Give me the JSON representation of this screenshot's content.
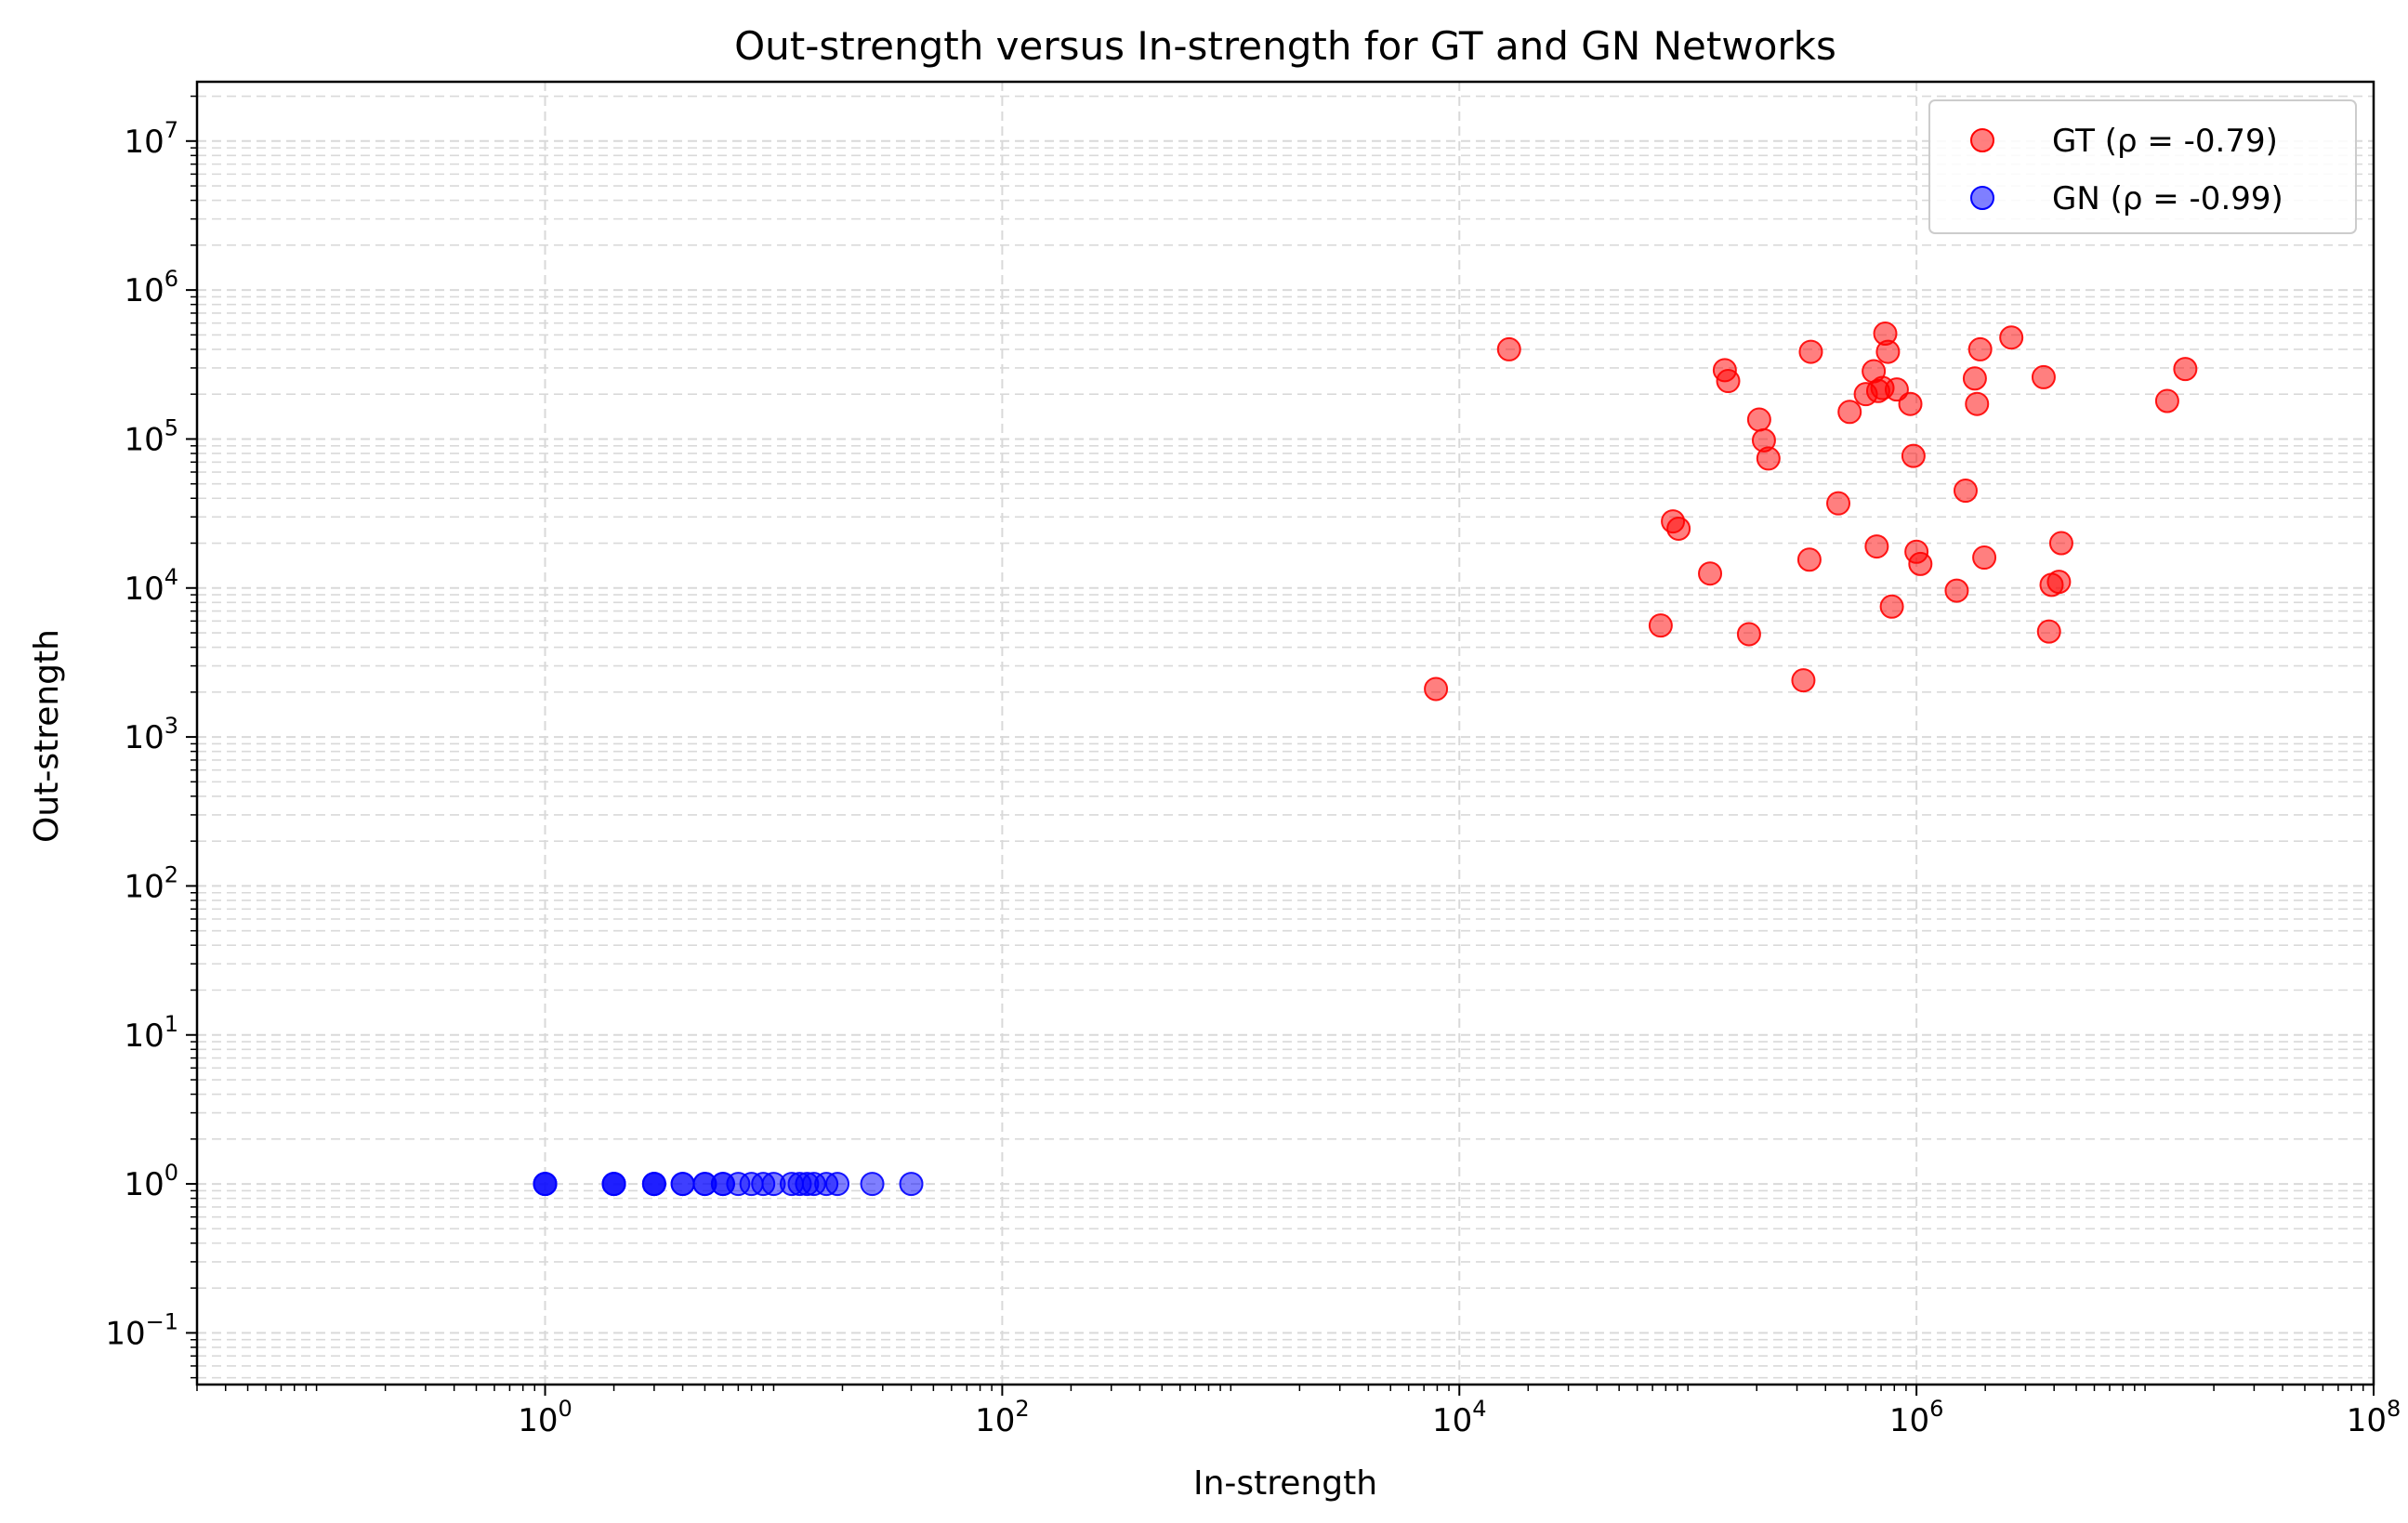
{
  "chart_data": {
    "type": "scatter",
    "title": "Out-strength versus In-strength for GT and GN Networks",
    "xlabel": "In-strength",
    "ylabel": "Out-strength",
    "xscale": "log",
    "yscale": "log",
    "xlim": [
      0.03,
      100000000
    ],
    "ylim": [
      0.045,
      25000000
    ],
    "grid": true,
    "legend_position": "top-right",
    "x_ticks": [
      {
        "base": "10",
        "exp": "0"
      },
      {
        "base": "10",
        "exp": "2"
      },
      {
        "base": "10",
        "exp": "4"
      },
      {
        "base": "10",
        "exp": "6"
      },
      {
        "base": "10",
        "exp": "8"
      }
    ],
    "y_ticks": [
      {
        "base": "10",
        "exp": "−1"
      },
      {
        "base": "10",
        "exp": "0"
      },
      {
        "base": "10",
        "exp": "1"
      },
      {
        "base": "10",
        "exp": "2"
      },
      {
        "base": "10",
        "exp": "3"
      },
      {
        "base": "10",
        "exp": "4"
      },
      {
        "base": "10",
        "exp": "5"
      },
      {
        "base": "10",
        "exp": "6"
      },
      {
        "base": "10",
        "exp": "7"
      }
    ],
    "series": [
      {
        "name": "GT (ρ = -0.79)",
        "color": "#ff0000",
        "points": [
          [
            7900,
            2100
          ],
          [
            16500,
            400000
          ],
          [
            76000,
            5600
          ],
          [
            86000,
            28000
          ],
          [
            91000,
            25000
          ],
          [
            125000,
            12500
          ],
          [
            145000,
            290000
          ],
          [
            150000,
            245000
          ],
          [
            185000,
            4900
          ],
          [
            205000,
            135000
          ],
          [
            215000,
            98000
          ],
          [
            225000,
            74000
          ],
          [
            320000,
            2400
          ],
          [
            340000,
            15500
          ],
          [
            345000,
            385000
          ],
          [
            455000,
            37000
          ],
          [
            510000,
            152000
          ],
          [
            600000,
            200000
          ],
          [
            650000,
            285000
          ],
          [
            670000,
            19000
          ],
          [
            680000,
            210000
          ],
          [
            710000,
            220000
          ],
          [
            730000,
            510000
          ],
          [
            750000,
            385000
          ],
          [
            780000,
            7500
          ],
          [
            820000,
            215000
          ],
          [
            940000,
            172000
          ],
          [
            970000,
            77000
          ],
          [
            1000000,
            17500
          ],
          [
            1040000,
            14500
          ],
          [
            1500000,
            9600
          ],
          [
            1640000,
            45000
          ],
          [
            1800000,
            255000
          ],
          [
            1840000,
            172000
          ],
          [
            1900000,
            400000
          ],
          [
            1980000,
            16000
          ],
          [
            2600000,
            480000
          ],
          [
            3600000,
            260000
          ],
          [
            3800000,
            5100
          ],
          [
            3900000,
            10500
          ],
          [
            4200000,
            11000
          ],
          [
            4300000,
            20000
          ],
          [
            12500000,
            180000
          ],
          [
            15000000,
            295000
          ]
        ]
      },
      {
        "name": "GN (ρ = -0.99)",
        "color": "#0000ff",
        "points": [
          [
            1,
            1
          ],
          [
            1,
            1
          ],
          [
            1,
            1
          ],
          [
            2,
            1
          ],
          [
            2,
            1
          ],
          [
            2,
            1
          ],
          [
            3,
            1
          ],
          [
            3,
            1
          ],
          [
            3,
            1
          ],
          [
            4,
            1
          ],
          [
            4,
            1
          ],
          [
            5,
            1
          ],
          [
            5,
            1
          ],
          [
            6,
            1
          ],
          [
            6,
            1
          ],
          [
            7,
            1
          ],
          [
            8,
            1
          ],
          [
            9,
            1
          ],
          [
            10,
            1
          ],
          [
            12,
            1
          ],
          [
            13,
            1
          ],
          [
            14,
            1
          ],
          [
            15,
            1
          ],
          [
            17,
            1
          ],
          [
            19,
            1
          ],
          [
            27,
            1
          ],
          [
            40,
            1
          ]
        ]
      }
    ]
  }
}
